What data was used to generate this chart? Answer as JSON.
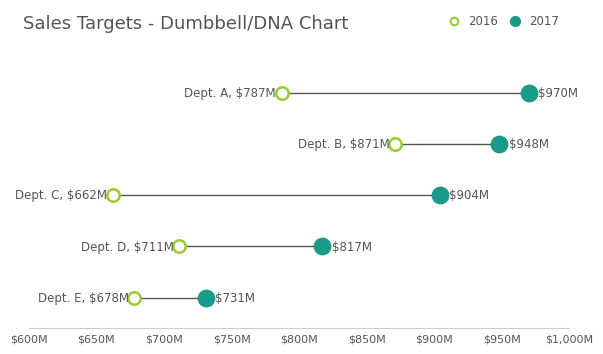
{
  "title": "Sales Targets - Dumbbell/DNA Chart",
  "departments": [
    "Dept. A",
    "Dept. B",
    "Dept. C",
    "Dept. D",
    "Dept. E"
  ],
  "values_2016": [
    787,
    871,
    662,
    711,
    678
  ],
  "values_2017": [
    970,
    948,
    904,
    817,
    731
  ],
  "labels_2016": [
    "$787M",
    "$871M",
    "$662M",
    "$711M",
    "$678M"
  ],
  "labels_2017": [
    "$970M",
    "$948M",
    "$904M",
    "$817M",
    "$731M"
  ],
  "color_2016": "#99cc33",
  "color_2017": "#1a9b8a",
  "line_color": "#555555",
  "bg_color": "#ffffff",
  "xlim": [
    600,
    1000
  ],
  "xtick_values": [
    600,
    650,
    700,
    750,
    800,
    850,
    900,
    950,
    1000
  ],
  "xtick_labels": [
    "$600M",
    "$650M",
    "$700M",
    "$750M",
    "$800M",
    "$850M",
    "$900M",
    "$950M",
    "$1,000M"
  ],
  "marker_size_2016": 80,
  "marker_size_2017": 140,
  "title_fontsize": 13,
  "label_fontsize": 8.5,
  "tick_fontsize": 8,
  "legend_fontsize": 8.5,
  "text_color": "#555555",
  "legend_marker_2016": 30,
  "legend_marker_2017": 50
}
